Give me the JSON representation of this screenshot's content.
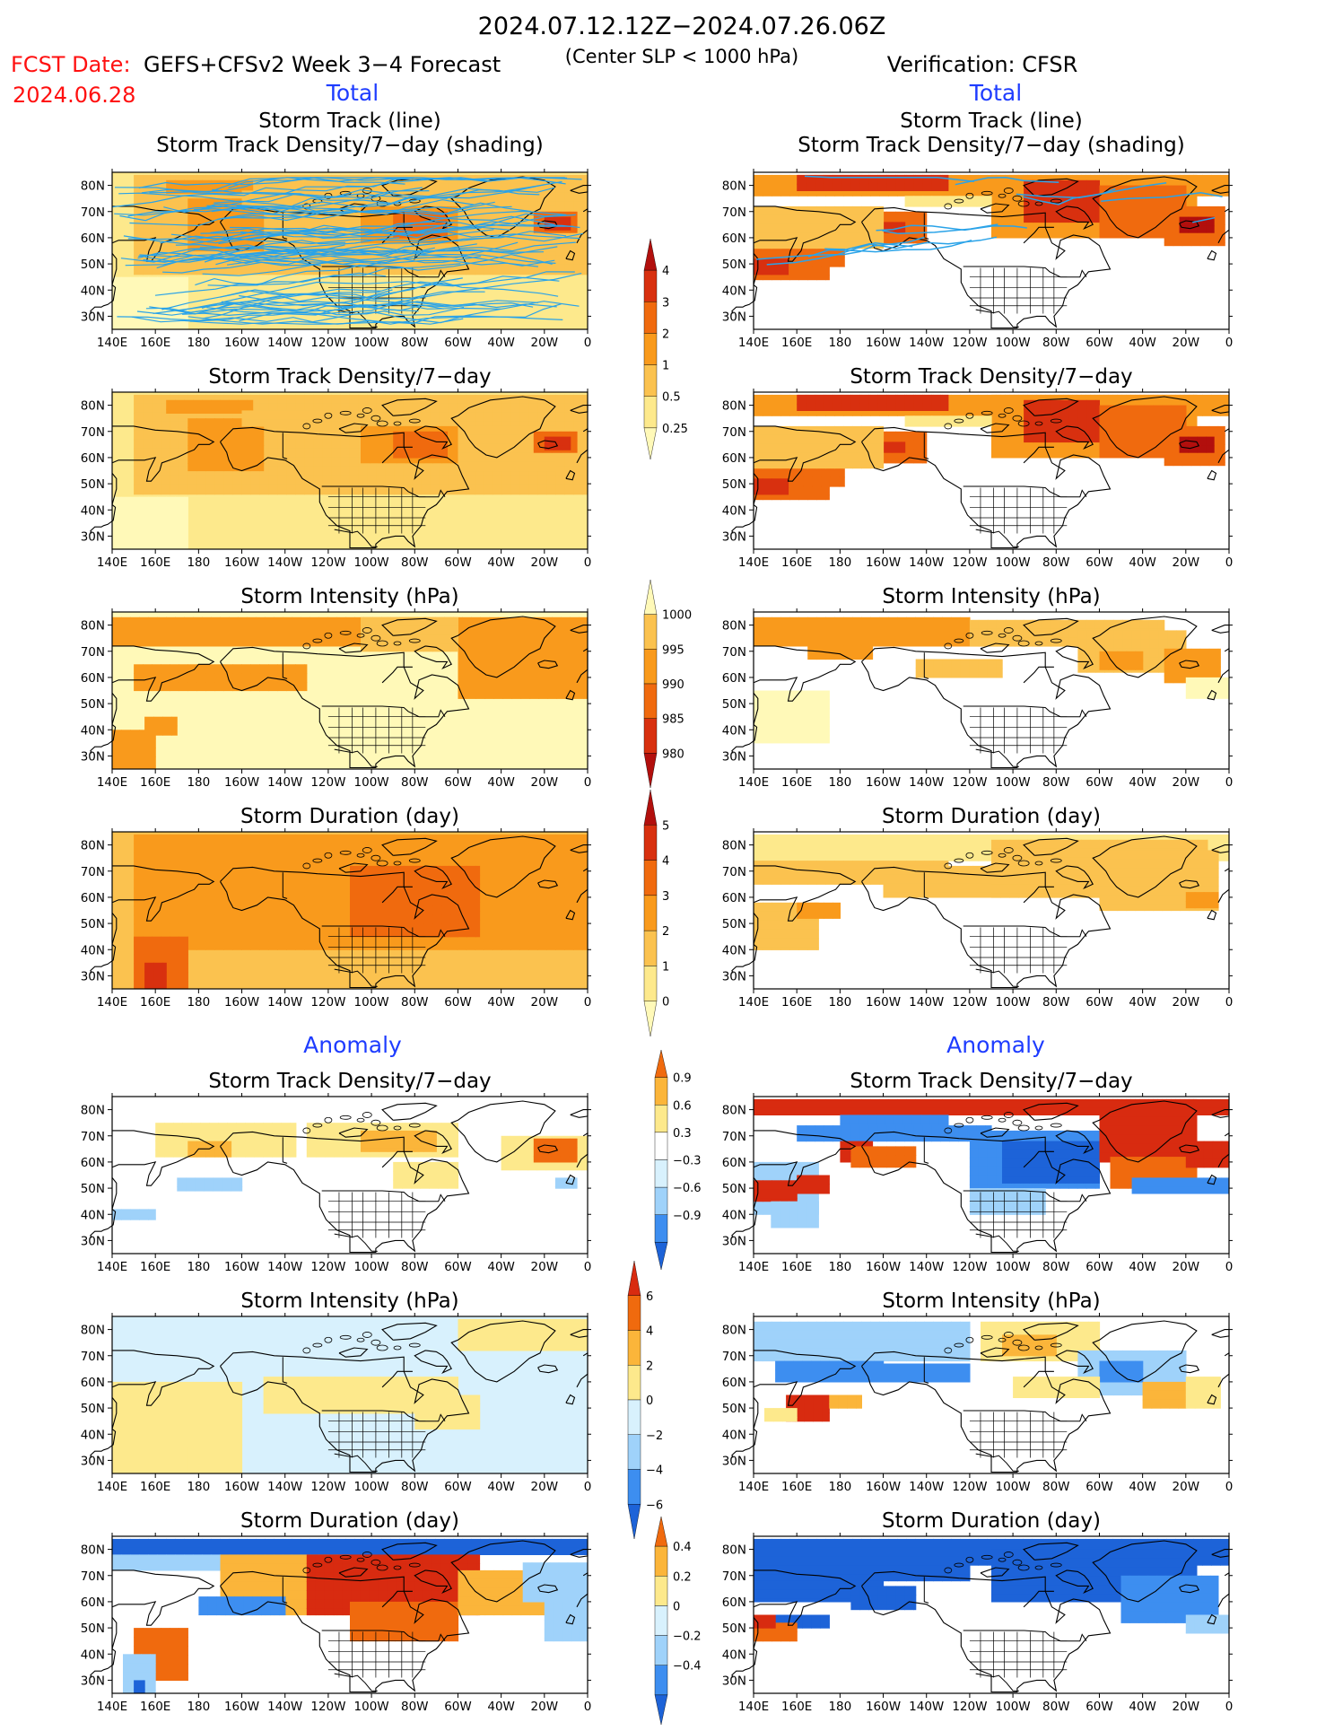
{
  "header": {
    "period": "2024.07.12.12Z−2024.07.26.06Z",
    "fcst_date_label": "FCST Date:",
    "fcst_date_value": "2024.06.28",
    "left_title": "GEFS+CFSv2 Week 3−4 Forecast",
    "center_subtitle": "(Center SLP < 1000 hPa)",
    "right_title": "Verification: CFSR"
  },
  "section_labels": {
    "left_total": "Total",
    "right_total": "Total",
    "left_anomaly": "Anomaly",
    "right_anomaly": "Anomaly"
  },
  "panel_titles": {
    "track_line": "Storm Track (line)",
    "track_density_shading": "Storm Track Density/7−day (shading)",
    "track_density": "Storm Track Density/7−day",
    "intensity": "Storm Intensity (hPa)",
    "duration": "Storm Duration (day)"
  },
  "map_axes": {
    "lon_labels": [
      "140E",
      "160E",
      "180",
      "160W",
      "140W",
      "120W",
      "100W",
      "80W",
      "60W",
      "40W",
      "20W",
      "0"
    ],
    "lat_labels": [
      "80N",
      "70N",
      "60N",
      "50N",
      "40N",
      "30N"
    ]
  },
  "colorbars": [
    {
      "id": "density_total",
      "labels": [
        "4",
        "3",
        "2",
        "1",
        "0.5",
        "0.25"
      ]
    },
    {
      "id": "intensity_total",
      "labels": [
        "1000",
        "995",
        "990",
        "985",
        "980"
      ]
    },
    {
      "id": "duration_total",
      "labels": [
        "5",
        "4",
        "3",
        "2",
        "1",
        "0"
      ]
    },
    {
      "id": "density_anom",
      "labels": [
        "0.9",
        "0.6",
        "0.3",
        "−0.3",
        "−0.6",
        "−0.9"
      ]
    },
    {
      "id": "intensity_anom",
      "labels": [
        "6",
        "4",
        "2",
        "0",
        "−2",
        "−4",
        "−6"
      ]
    },
    {
      "id": "duration_anom",
      "labels": [
        "0.4",
        "0.2",
        "0",
        "−0.2",
        "−0.4"
      ]
    }
  ],
  "colors": {
    "total_scale": [
      "#fff9b8",
      "#fde98c",
      "#fbc24f",
      "#f99a1c",
      "#f06a0e",
      "#d8300f",
      "#b20f0d"
    ],
    "anom_scale": [
      "#1d63d8",
      "#3d8ef0",
      "#9fd2fa",
      "#d8f1fd",
      "#ffffff",
      "#fde98c",
      "#fbb53a",
      "#f06a0e",
      "#d82b10"
    ],
    "label_red": "#ff1010",
    "label_blue": "#1e3cff",
    "track_blue": "#2aa3e8"
  }
}
